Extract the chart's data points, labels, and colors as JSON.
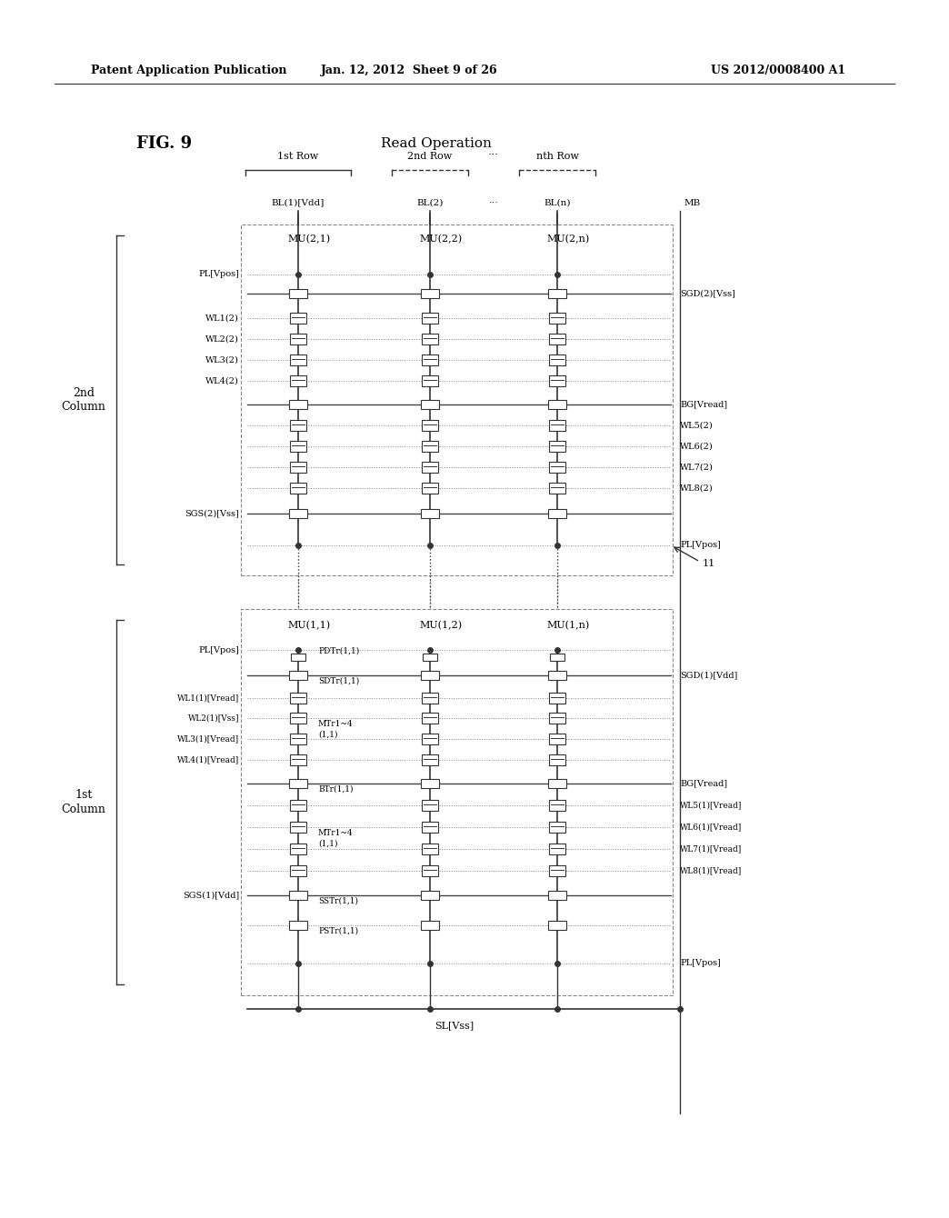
{
  "header_left": "Patent Application Publication",
  "header_mid": "Jan. 12, 2012  Sheet 9 of 26",
  "header_right": "US 2012/0008400 A1",
  "fig_label": "FIG. 9",
  "title": "Read Operation",
  "bg_color": "#ffffff",
  "text_color": "#000000",
  "line_color": "#333333",
  "dashed_color": "#666666"
}
